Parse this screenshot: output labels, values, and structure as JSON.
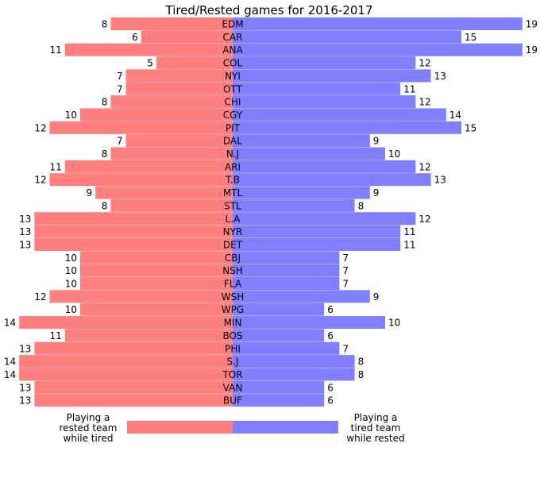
{
  "chart_data": {
    "type": "bar",
    "orientation": "horizontal-diverging",
    "title": "Tired/Rested games for 2016-2017",
    "categories": [
      "EDM",
      "CAR",
      "ANA",
      "COL",
      "NYI",
      "OTT",
      "CHI",
      "CGY",
      "PIT",
      "DAL",
      "N.J",
      "ARI",
      "T.B",
      "MTL",
      "STL",
      "L.A",
      "NYR",
      "DET",
      "CBJ",
      "NSH",
      "FLA",
      "WSH",
      "WPG",
      "MIN",
      "BOS",
      "PHI",
      "S.J",
      "TOR",
      "VAN",
      "BUF"
    ],
    "series": [
      {
        "name": "Playing a rested team while tired",
        "side": "left",
        "color": "#ff7f7f",
        "values": [
          8,
          6,
          11,
          5,
          7,
          7,
          8,
          10,
          12,
          7,
          8,
          11,
          12,
          9,
          8,
          13,
          13,
          13,
          10,
          10,
          10,
          12,
          10,
          14,
          11,
          13,
          14,
          14,
          13,
          13
        ]
      },
      {
        "name": "Playing a tired team while rested",
        "side": "right",
        "color": "#7f7fff",
        "values": [
          19,
          15,
          19,
          12,
          13,
          11,
          12,
          14,
          15,
          9,
          10,
          12,
          13,
          9,
          8,
          12,
          11,
          11,
          7,
          7,
          7,
          9,
          6,
          10,
          6,
          7,
          8,
          8,
          6,
          6
        ]
      }
    ],
    "grid": false,
    "axes_visible": false,
    "legend": {
      "placement": "bottom",
      "left_label_lines": [
        "Playing a",
        "rested team",
        "while tired"
      ],
      "right_label_lines": [
        "Playing a",
        "tired team",
        "while rested"
      ]
    }
  }
}
